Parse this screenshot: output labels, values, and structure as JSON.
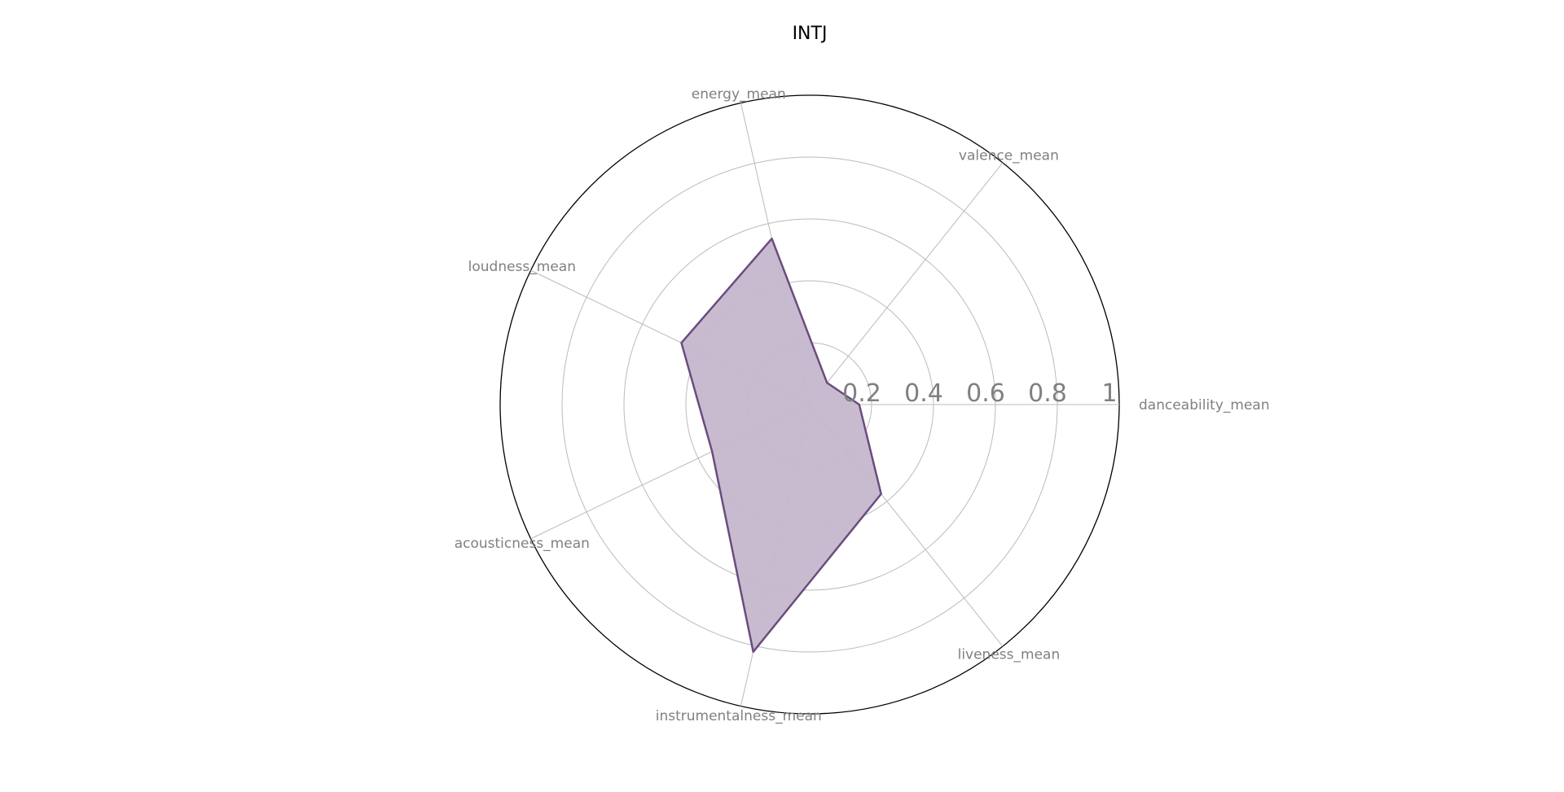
{
  "chart_data": {
    "type": "radar",
    "title": "INTJ",
    "categories": [
      "danceability_mean",
      "valence_mean",
      "energy_mean",
      "loudness_mean",
      "acousticness_mean",
      "instrumentalness_mean",
      "liveness_mean"
    ],
    "series": [
      {
        "values": [
          0.16,
          0.09,
          0.55,
          0.46,
          0.35,
          0.82,
          0.37
        ]
      }
    ],
    "rlim": [
      0,
      1
    ],
    "ticks": [
      0.2,
      0.4,
      0.6,
      0.8,
      1
    ],
    "tick_labels": [
      "0.2",
      "0.4",
      "0.6",
      "0.8",
      "1"
    ],
    "grid": true,
    "colors": {
      "line": "#6b4c7e",
      "fill": "#c6b7cc",
      "grid": "#bbbbbb",
      "spokes": "#bbbbbb",
      "outer_ring": "#000000",
      "labels": "#808080"
    }
  }
}
